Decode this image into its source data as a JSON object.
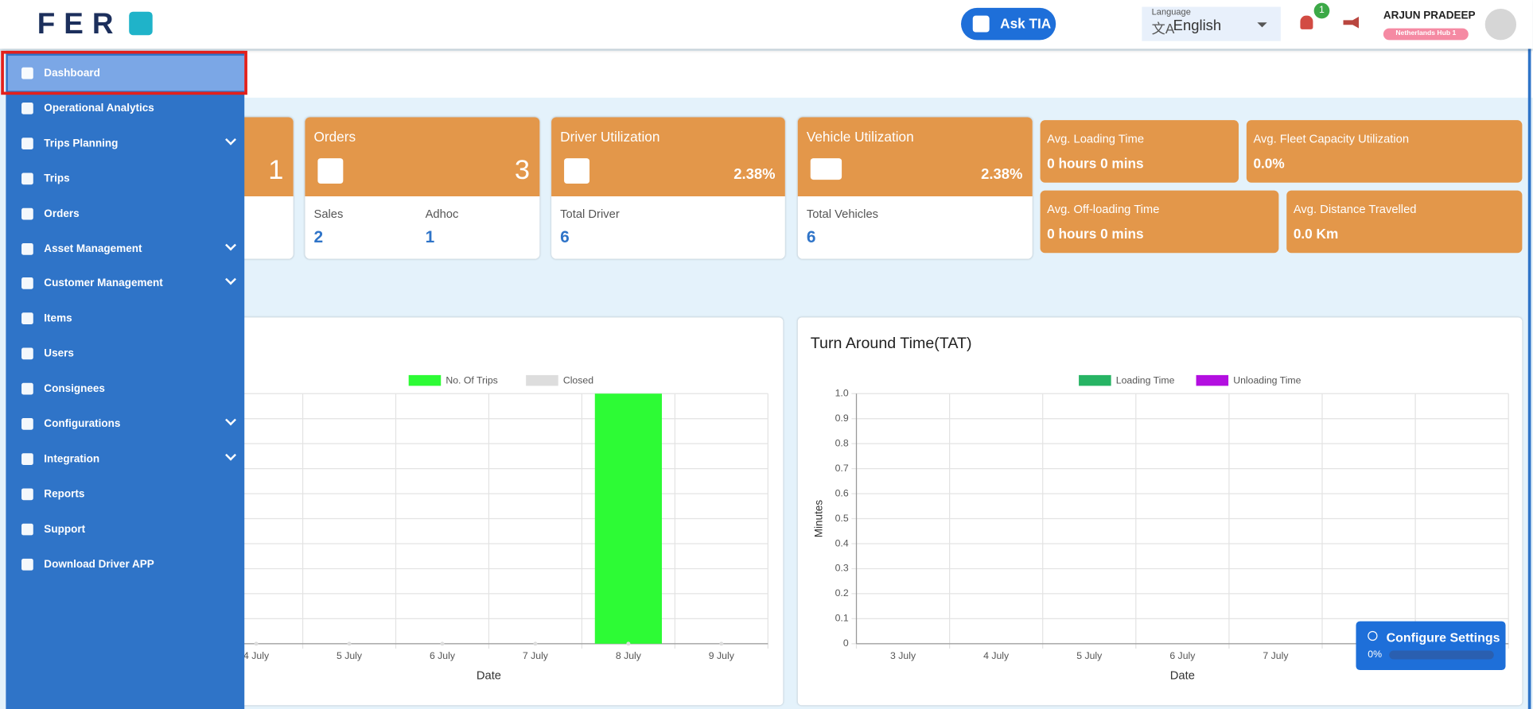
{
  "header": {
    "logo": "FER",
    "ask_button": "Ask TIA",
    "language_label": "Language",
    "language": "English",
    "notification_count": "1",
    "user_name": "ARJUN PRADEEP",
    "user_hub": "Netherlands Hub 1"
  },
  "sidebar": {
    "items": [
      {
        "label": "Dashboard",
        "active": true
      },
      {
        "label": "Operational Analytics"
      },
      {
        "label": "Trips Planning",
        "expandable": true
      },
      {
        "label": "Trips"
      },
      {
        "label": "Orders"
      },
      {
        "label": "Asset Management",
        "expandable": true
      },
      {
        "label": "Customer Management",
        "expandable": true
      },
      {
        "label": "Items"
      },
      {
        "label": "Users"
      },
      {
        "label": "Consignees"
      },
      {
        "label": "Configurations",
        "expandable": true
      },
      {
        "label": "Integration",
        "expandable": true
      },
      {
        "label": "Reports"
      },
      {
        "label": "Support"
      },
      {
        "label": "Download Driver APP"
      }
    ]
  },
  "cards": {
    "trips": {
      "value": "1"
    },
    "orders": {
      "title": "Orders",
      "value": "3",
      "sales_label": "Sales",
      "sales": "2",
      "adhoc_label": "Adhoc",
      "adhoc": "1"
    },
    "driver": {
      "title": "Driver Utilization",
      "value": "2.38%",
      "total_label": "Total Driver",
      "total": "6"
    },
    "vehicle": {
      "title": "Vehicle Utilization",
      "value": "2.38%",
      "total_label": "Total Vehicles",
      "total": "6"
    },
    "loading": {
      "title": "Avg. Loading Time",
      "value": "0 hours 0 mins"
    },
    "fleet": {
      "title": "Avg. Fleet Capacity Utilization",
      "value": "0.0%"
    },
    "offloading": {
      "title": "Avg. Off-loading Time",
      "value": "0 hours 0 mins"
    },
    "distance": {
      "title": "Avg. Distance Travelled",
      "value": "0.0 Km"
    }
  },
  "trips_chart": {
    "type": "bar",
    "categories": [
      "4 July",
      "5 July",
      "6 July",
      "7 July",
      "8 July",
      "9 July"
    ],
    "series": [
      {
        "name": "No. Of Trips",
        "color": "#2dfb35",
        "values": [
          0,
          0,
          0,
          0,
          1,
          0
        ]
      },
      {
        "name": "Closed",
        "color": "#dddddd",
        "values": [
          0,
          0,
          0,
          0,
          0,
          0
        ]
      }
    ],
    "ylim": [
      0,
      1
    ],
    "xlabel": "Date",
    "grid": true
  },
  "tat_chart": {
    "type": "bar",
    "title": "Turn Around Time(TAT)",
    "categories": [
      "3 July",
      "4 July",
      "5 July",
      "6 July",
      "7 July",
      null,
      null
    ],
    "series": [
      {
        "name": "Loading Time",
        "color": "#27b464"
      },
      {
        "name": "Unloading Time",
        "color": "#b30fe0"
      }
    ],
    "ylim": [
      0,
      1
    ],
    "yticks": [
      0,
      0.1,
      0.2,
      0.3,
      0.4,
      0.5,
      0.6,
      0.7,
      0.8,
      0.9,
      {
        "value": 1,
        "label": "1.0"
      }
    ],
    "xlabel": "Date",
    "ylabel": "Minutes",
    "grid": true
  },
  "configure": {
    "title": "Configure Settings",
    "progress": "0%"
  }
}
